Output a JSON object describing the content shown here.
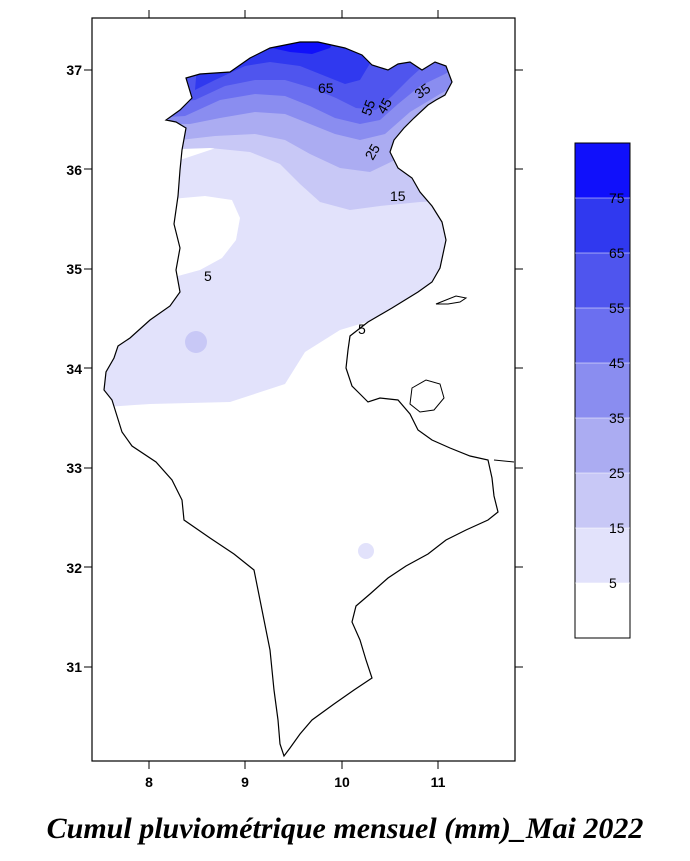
{
  "map": {
    "x_axis": {
      "ticks": [
        "8",
        "9",
        "10",
        "11"
      ]
    },
    "y_axis": {
      "ticks": [
        "37",
        "36",
        "35",
        "34",
        "33",
        "32",
        "31"
      ]
    },
    "contour_labels": [
      "65",
      "55",
      "45",
      "35",
      "25",
      "15",
      "5",
      "5"
    ],
    "colors": {
      "c0": "#ffffff",
      "c5": "#e2e2fb",
      "c15": "#c8c8f6",
      "c25": "#abacf2",
      "c35": "#8a8df0",
      "c45": "#6b6ff0",
      "c55": "#4f55ee",
      "c65": "#3039ef",
      "c75": "#1010fb"
    }
  },
  "legend": {
    "labels": [
      "75",
      "65",
      "55",
      "45",
      "35",
      "25",
      "15",
      "5"
    ]
  },
  "caption": "Cumul pluviométrique mensuel (mm)_Mai 2022"
}
